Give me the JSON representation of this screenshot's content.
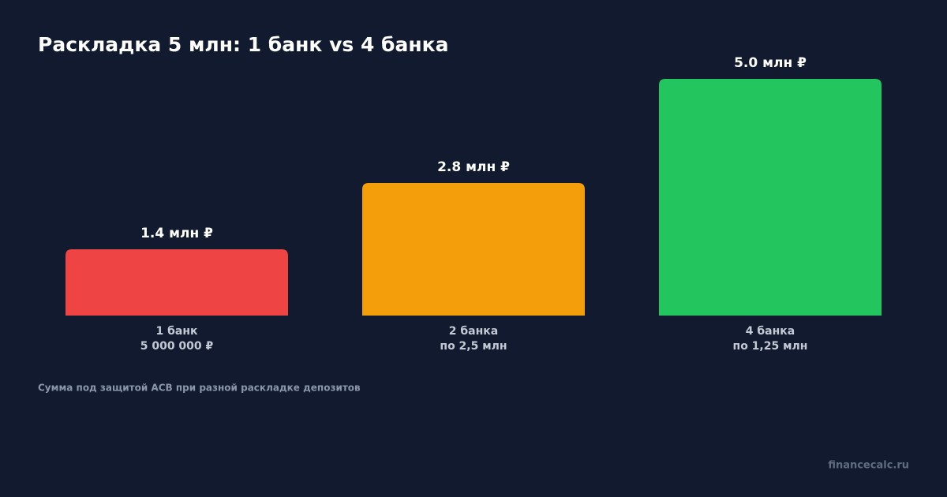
{
  "chart_data": {
    "type": "bar",
    "title": "Раскладка 5 млн: 1 банк vs 4 банка",
    "categories": [
      [
        "1 банк",
        "5 000 000 ₽"
      ],
      [
        "2 банка",
        "по 2,5 млн"
      ],
      [
        "4 банка",
        "по 1,25 млн"
      ]
    ],
    "values": [
      1.4,
      2.8,
      5.0
    ],
    "value_labels": [
      "1.4 млн ₽",
      "2.8 млн ₽",
      "5.0 млн ₽"
    ],
    "colors": [
      "#ef4444",
      "#f59e0b",
      "#22c55e"
    ],
    "note": "Сумма под защитой АСВ при разной раскладке депозитов",
    "source": "financecalc.ru"
  }
}
